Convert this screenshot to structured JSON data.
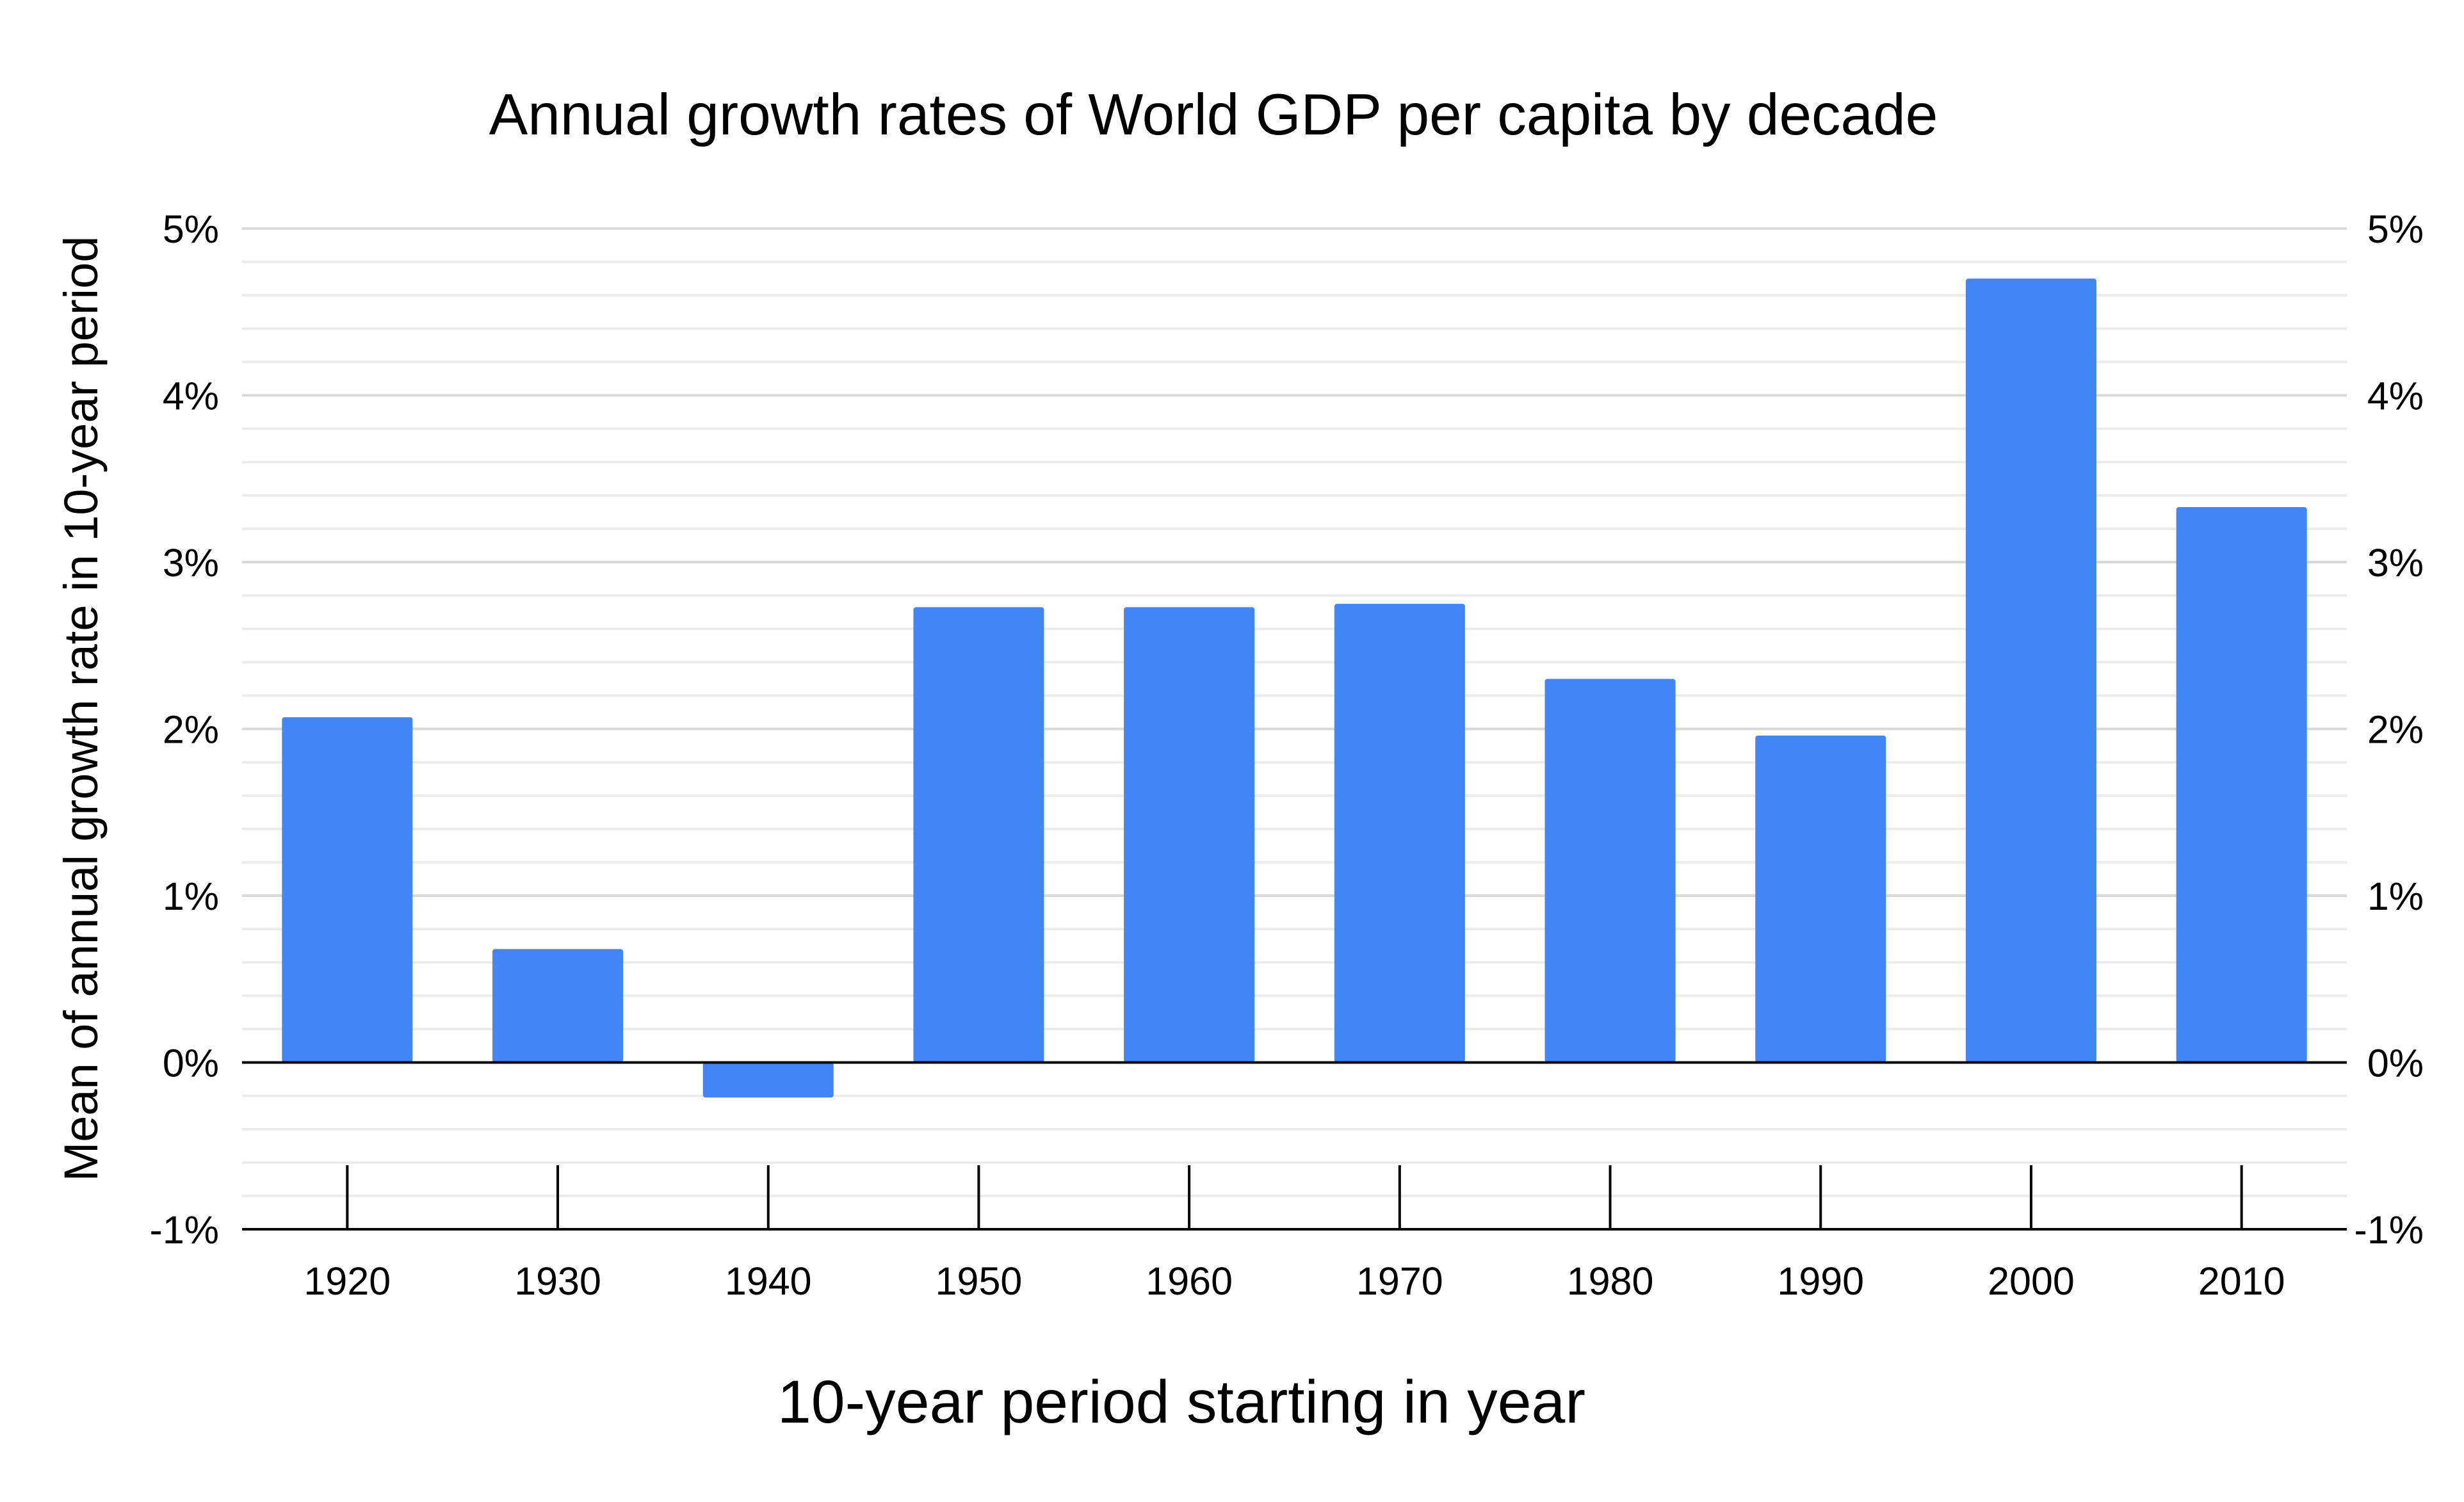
{
  "chart_data": {
    "type": "bar",
    "title": "Annual growth rates of World GDP per capita by decade",
    "xlabel": "10-year period starting in year",
    "ylabel": "Mean of annual growth rate in 10-year period",
    "categories": [
      "1920",
      "1930",
      "1940",
      "1950",
      "1960",
      "1970",
      "1980",
      "1990",
      "2000",
      "2010"
    ],
    "series": [
      {
        "values": [
          2.07,
          0.68,
          -0.21,
          2.73,
          2.73,
          2.75,
          2.3,
          1.96,
          4.7,
          3.33
        ]
      }
    ],
    "ylim": [
      -1,
      5
    ],
    "yticks": [
      -1,
      0,
      1,
      2,
      3,
      4,
      5
    ],
    "ytick_labels": [
      "-1%",
      "0%",
      "1%",
      "2%",
      "3%",
      "4%",
      "5%"
    ],
    "secondary_y_axis": true,
    "minor_gridlines_per_unit": 5,
    "grid": true,
    "legend": "none",
    "bar_color": "#4285F4",
    "gridline_color": "#d9d9d9",
    "axis_color": "#000000"
  }
}
